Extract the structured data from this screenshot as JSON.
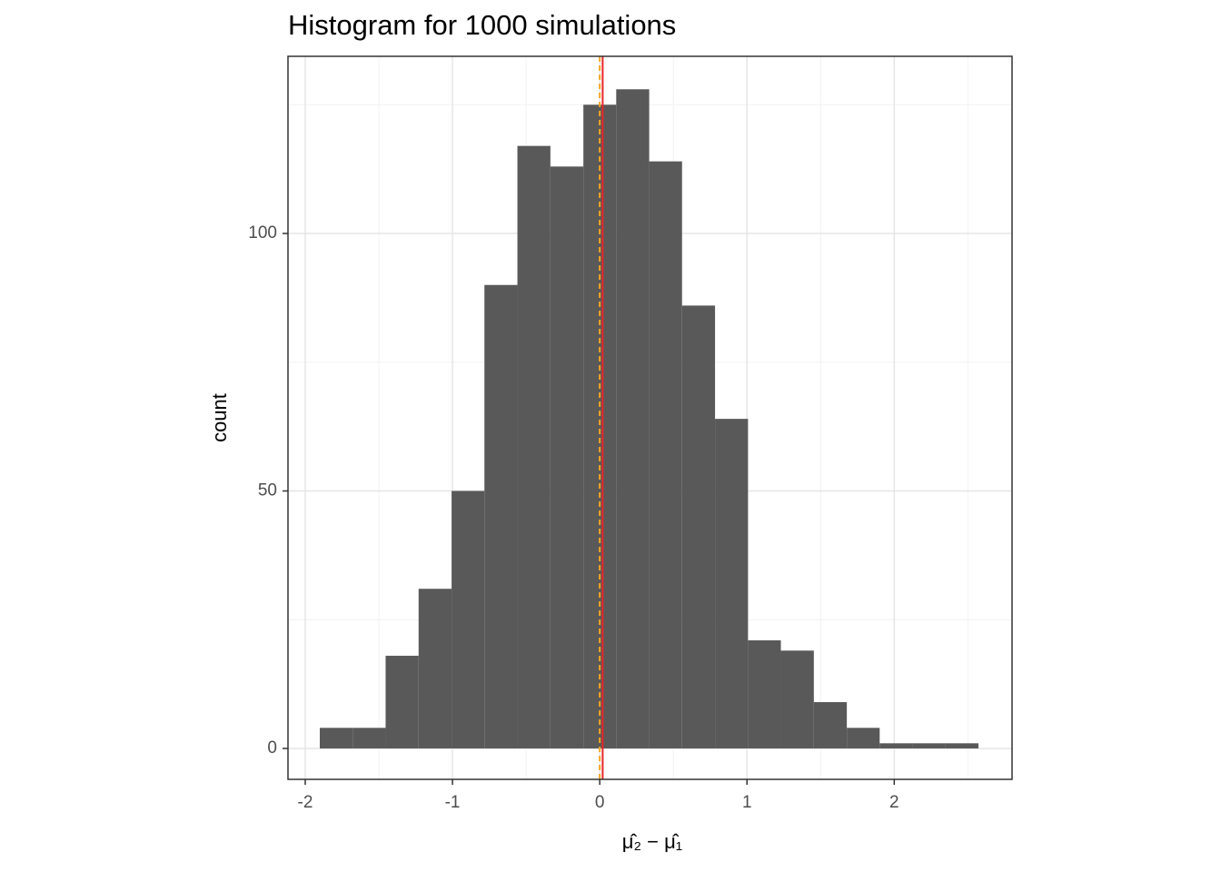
{
  "chart_data": {
    "type": "histogram",
    "title": "Histogram for 1000 simulations",
    "x_label": "μ̂₂ − μ̂₁",
    "y_label": "count",
    "bins": [
      -1.901,
      -1.677,
      -1.454,
      -1.23,
      -1.006,
      -0.783,
      -0.559,
      -0.335,
      -0.111,
      0.112,
      0.336,
      0.559,
      0.783,
      1.007,
      1.23,
      1.454,
      1.678,
      1.901,
      2.125,
      2.349,
      2.572
    ],
    "values": [
      4,
      4,
      18,
      31,
      50,
      90,
      117,
      113,
      125,
      128,
      114,
      86,
      64,
      21,
      19,
      9,
      4,
      1,
      1,
      1
    ],
    "color": "#595959",
    "xlim": [
      -2.117,
      2.8
    ],
    "ylim": [
      -6,
      134.4
    ],
    "xticks": [
      -2,
      -1,
      0,
      1,
      2
    ],
    "yticks": [
      0,
      50,
      100
    ],
    "xminor": [
      -1.5,
      -0.5,
      0.5,
      1.5,
      2.5
    ],
    "yminor": [
      25,
      75,
      125
    ],
    "grid": true,
    "vlines": [
      {
        "value": 0.02,
        "color": "#e8262a",
        "dashed": false
      },
      {
        "value": 0,
        "color": "#f5a623",
        "dashed": true
      }
    ]
  }
}
